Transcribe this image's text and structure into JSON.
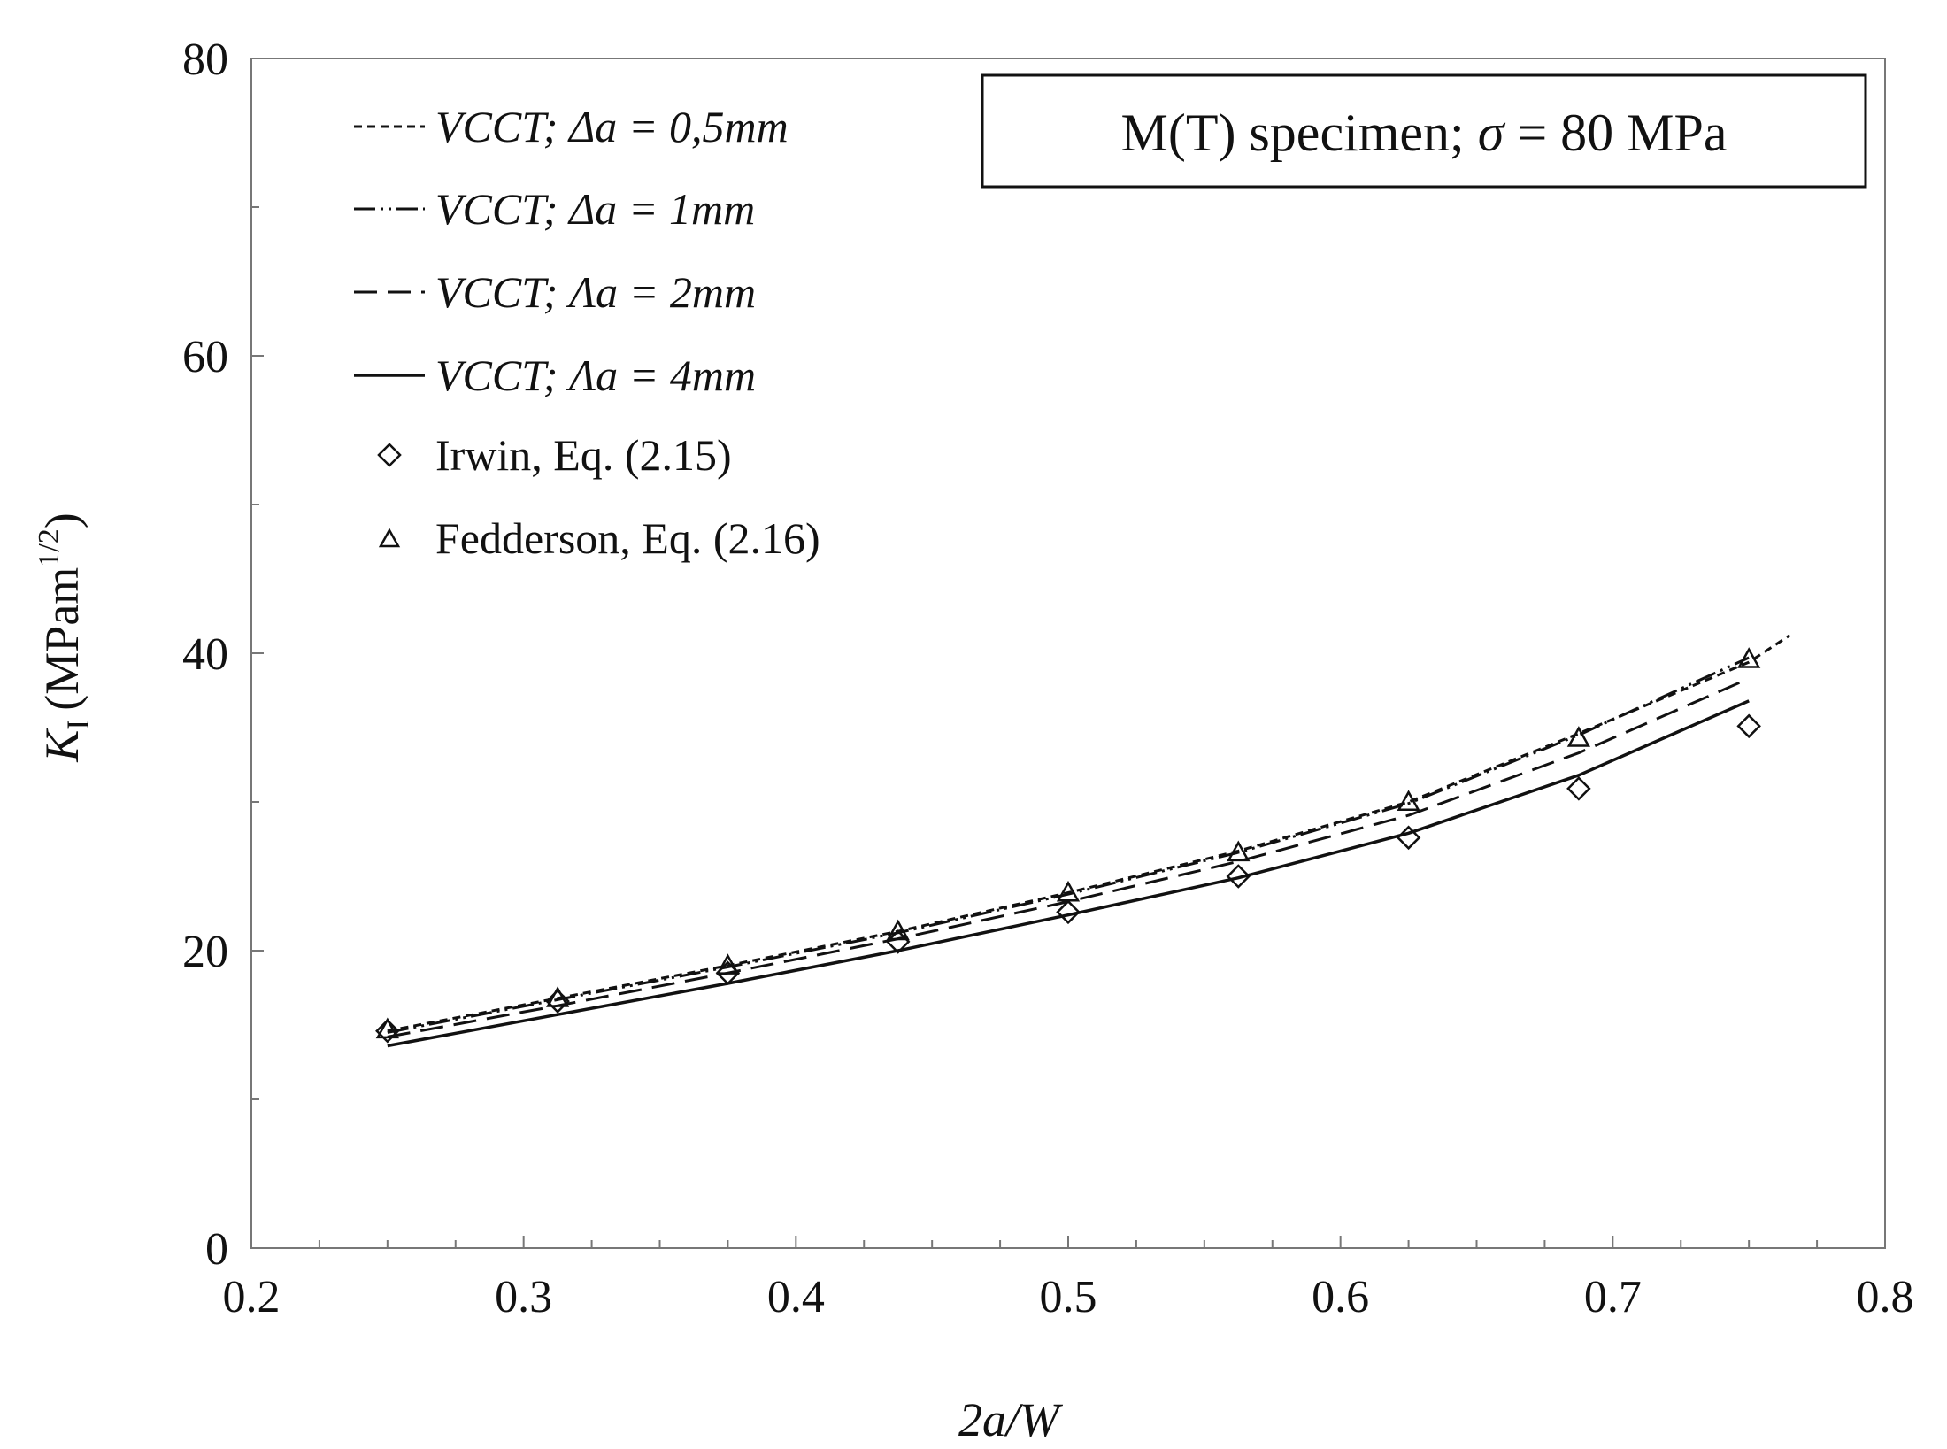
{
  "chart_data": {
    "type": "line",
    "title": "",
    "xlabel": "2a/W",
    "ylabel": {
      "symbol": "K",
      "subscript": "I",
      "unit_prefix": "(MPam",
      "unit_exponent": "1/2",
      "unit_suffix": ")"
    },
    "xlim": [
      0.2,
      0.8
    ],
    "ylim": [
      0,
      80
    ],
    "x_ticks": [
      0.2,
      0.3,
      0.4,
      0.5,
      0.6,
      0.7,
      0.8
    ],
    "x_tick_labels": [
      "0.2",
      "0.3",
      "0.4",
      "0.5",
      "0.6",
      "0.7",
      "0.8"
    ],
    "y_ticks": [
      0,
      20,
      40,
      60,
      80
    ],
    "y_tick_labels": [
      "0",
      "20",
      "40",
      "60",
      "80"
    ],
    "grid": false,
    "legend_position": "top-left",
    "annotation": {
      "prefix": "M(T) specimen; ",
      "symbol": "σ",
      "suffix": " = 80 MPa",
      "position": "top-right"
    },
    "series": [
      {
        "name": "VCCT; Δa = 0,5mm",
        "label_prefix": "VCCT; ",
        "label_symbol": "Δa",
        "label_value": " = 0,5mm",
        "style": "dashed-fine",
        "marker": "none",
        "x": [
          0.25,
          0.3125,
          0.375,
          0.4375,
          0.5,
          0.5625,
          0.625,
          0.6875,
          0.75,
          0.765
        ],
        "y": [
          14.6,
          16.8,
          19.0,
          21.3,
          23.9,
          26.7,
          30.0,
          34.6,
          39.4,
          41.2
        ]
      },
      {
        "name": "VCCT; Δa = 1mm",
        "label_prefix": "VCCT; ",
        "label_symbol": "Δa",
        "label_value": " = 1mm",
        "style": "dash-dot-dot",
        "marker": "none",
        "x": [
          0.25,
          0.3125,
          0.375,
          0.4375,
          0.5,
          0.5625,
          0.625,
          0.6875,
          0.75
        ],
        "y": [
          14.5,
          16.7,
          18.9,
          21.2,
          23.8,
          26.6,
          29.9,
          34.5,
          39.7
        ]
      },
      {
        "name": "VCCT; Λa = 2mm",
        "label_prefix": "VCCT; ",
        "label_symbol": "Λa",
        "label_value": " = 2mm",
        "style": "dashed-long",
        "marker": "none",
        "x": [
          0.25,
          0.3125,
          0.375,
          0.4375,
          0.5,
          0.5625,
          0.625,
          0.6875,
          0.75
        ],
        "y": [
          14.2,
          16.3,
          18.5,
          20.8,
          23.3,
          26.0,
          29.1,
          33.3,
          38.3
        ]
      },
      {
        "name": "VCCT; Λa = 4mm",
        "label_prefix": "VCCT; ",
        "label_symbol": "Λa",
        "label_value": " = 4mm",
        "style": "solid",
        "marker": "none",
        "x": [
          0.25,
          0.3125,
          0.375,
          0.4375,
          0.5,
          0.5625,
          0.625,
          0.6875,
          0.75
        ],
        "y": [
          13.6,
          15.7,
          17.8,
          20.0,
          22.4,
          24.9,
          27.9,
          31.8,
          36.8
        ]
      },
      {
        "name": "Irwin, Eq. (2.15)",
        "style": "none",
        "marker": "diamond",
        "x": [
          0.25,
          0.3125,
          0.375,
          0.4375,
          0.5,
          0.5625,
          0.625,
          0.6875,
          0.75
        ],
        "y": [
          14.6,
          16.6,
          18.5,
          20.6,
          22.6,
          25.0,
          27.6,
          30.9,
          35.1
        ]
      },
      {
        "name": "Fedderson, Eq. (2.16)",
        "style": "none",
        "marker": "triangle",
        "x": [
          0.25,
          0.3125,
          0.375,
          0.4375,
          0.5,
          0.5625,
          0.625,
          0.6875,
          0.75
        ],
        "y": [
          14.7,
          16.8,
          19.0,
          21.3,
          23.9,
          26.6,
          30.0,
          34.3,
          39.6
        ]
      }
    ]
  }
}
